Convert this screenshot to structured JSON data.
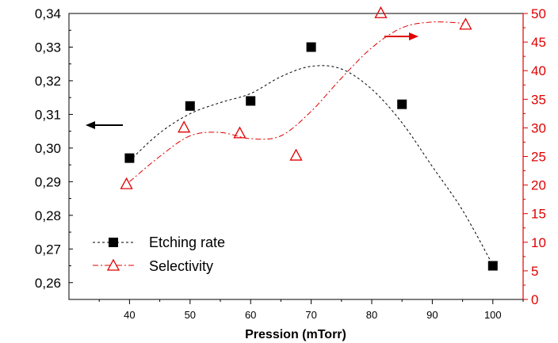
{
  "chart_data": {
    "type": "scatter",
    "title": "",
    "xlabel": "Pression (mTorr)",
    "x_ticks": [
      40,
      50,
      60,
      70,
      80,
      90,
      100
    ],
    "xlim": [
      30,
      105
    ],
    "y_left": {
      "label": "",
      "ylim": [
        0.255,
        0.34
      ],
      "ticks": [
        0.26,
        0.27,
        0.28,
        0.29,
        0.3,
        0.31,
        0.32,
        0.33,
        0.34
      ],
      "tick_labels": [
        "0,26",
        "0,27",
        "0,28",
        "0,29",
        "0,30",
        "0,31",
        "0,32",
        "0,33",
        "0,34"
      ]
    },
    "y_right": {
      "label": "",
      "ylim": [
        0,
        50
      ],
      "ticks": [
        0,
        5,
        10,
        15,
        20,
        25,
        30,
        35,
        40,
        45,
        50
      ],
      "tick_labels": [
        "0",
        "5",
        "10",
        "15",
        "20",
        "25",
        "30",
        "35",
        "40",
        "45",
        "50"
      ],
      "color": "#e00000"
    },
    "series": [
      {
        "name": "Etching rate",
        "axis": "left",
        "marker": "filled-square",
        "line": "dashed",
        "color": "#000000",
        "points": [
          [
            40,
            0.297
          ],
          [
            50,
            0.3125
          ],
          [
            60,
            0.314
          ],
          [
            70,
            0.33
          ],
          [
            85,
            0.313
          ],
          [
            100,
            0.265
          ]
        ],
        "fit_curve": [
          [
            40,
            0.2962
          ],
          [
            45,
            0.3045
          ],
          [
            50,
            0.3102
          ],
          [
            55,
            0.3135
          ],
          [
            60,
            0.3162
          ],
          [
            65,
            0.3212
          ],
          [
            70,
            0.3243
          ],
          [
            75,
            0.3235
          ],
          [
            80,
            0.3175
          ],
          [
            85,
            0.3075
          ],
          [
            90,
            0.2945
          ],
          [
            95,
            0.2815
          ],
          [
            100,
            0.2652
          ]
        ]
      },
      {
        "name": "Selectivity",
        "axis": "right",
        "marker": "open-triangle",
        "line": "dash-dot",
        "color": "#e00000",
        "points": [
          [
            39.5,
            20.2
          ],
          [
            49,
            30.1
          ],
          [
            58.2,
            29.1
          ],
          [
            67.5,
            25.2
          ],
          [
            81.5,
            50.1
          ],
          [
            95.5,
            48.1
          ]
        ],
        "fit_curve": [
          [
            40,
            20.6
          ],
          [
            45,
            25.0
          ],
          [
            50,
            28.6
          ],
          [
            55,
            29.2
          ],
          [
            60,
            28.1
          ],
          [
            65,
            28.6
          ],
          [
            70,
            32.9
          ],
          [
            75,
            38.7
          ],
          [
            80,
            44.0
          ],
          [
            85,
            47.5
          ],
          [
            90,
            48.5
          ],
          [
            95,
            48.3
          ]
        ]
      }
    ],
    "annotations": [
      {
        "type": "arrow",
        "direction": "left",
        "color": "#000000",
        "meaning": "points to left axis"
      },
      {
        "type": "arrow",
        "direction": "right",
        "color": "#e00000",
        "meaning": "points to right axis"
      }
    ],
    "legend_position": "bottom-left",
    "grid": false
  }
}
